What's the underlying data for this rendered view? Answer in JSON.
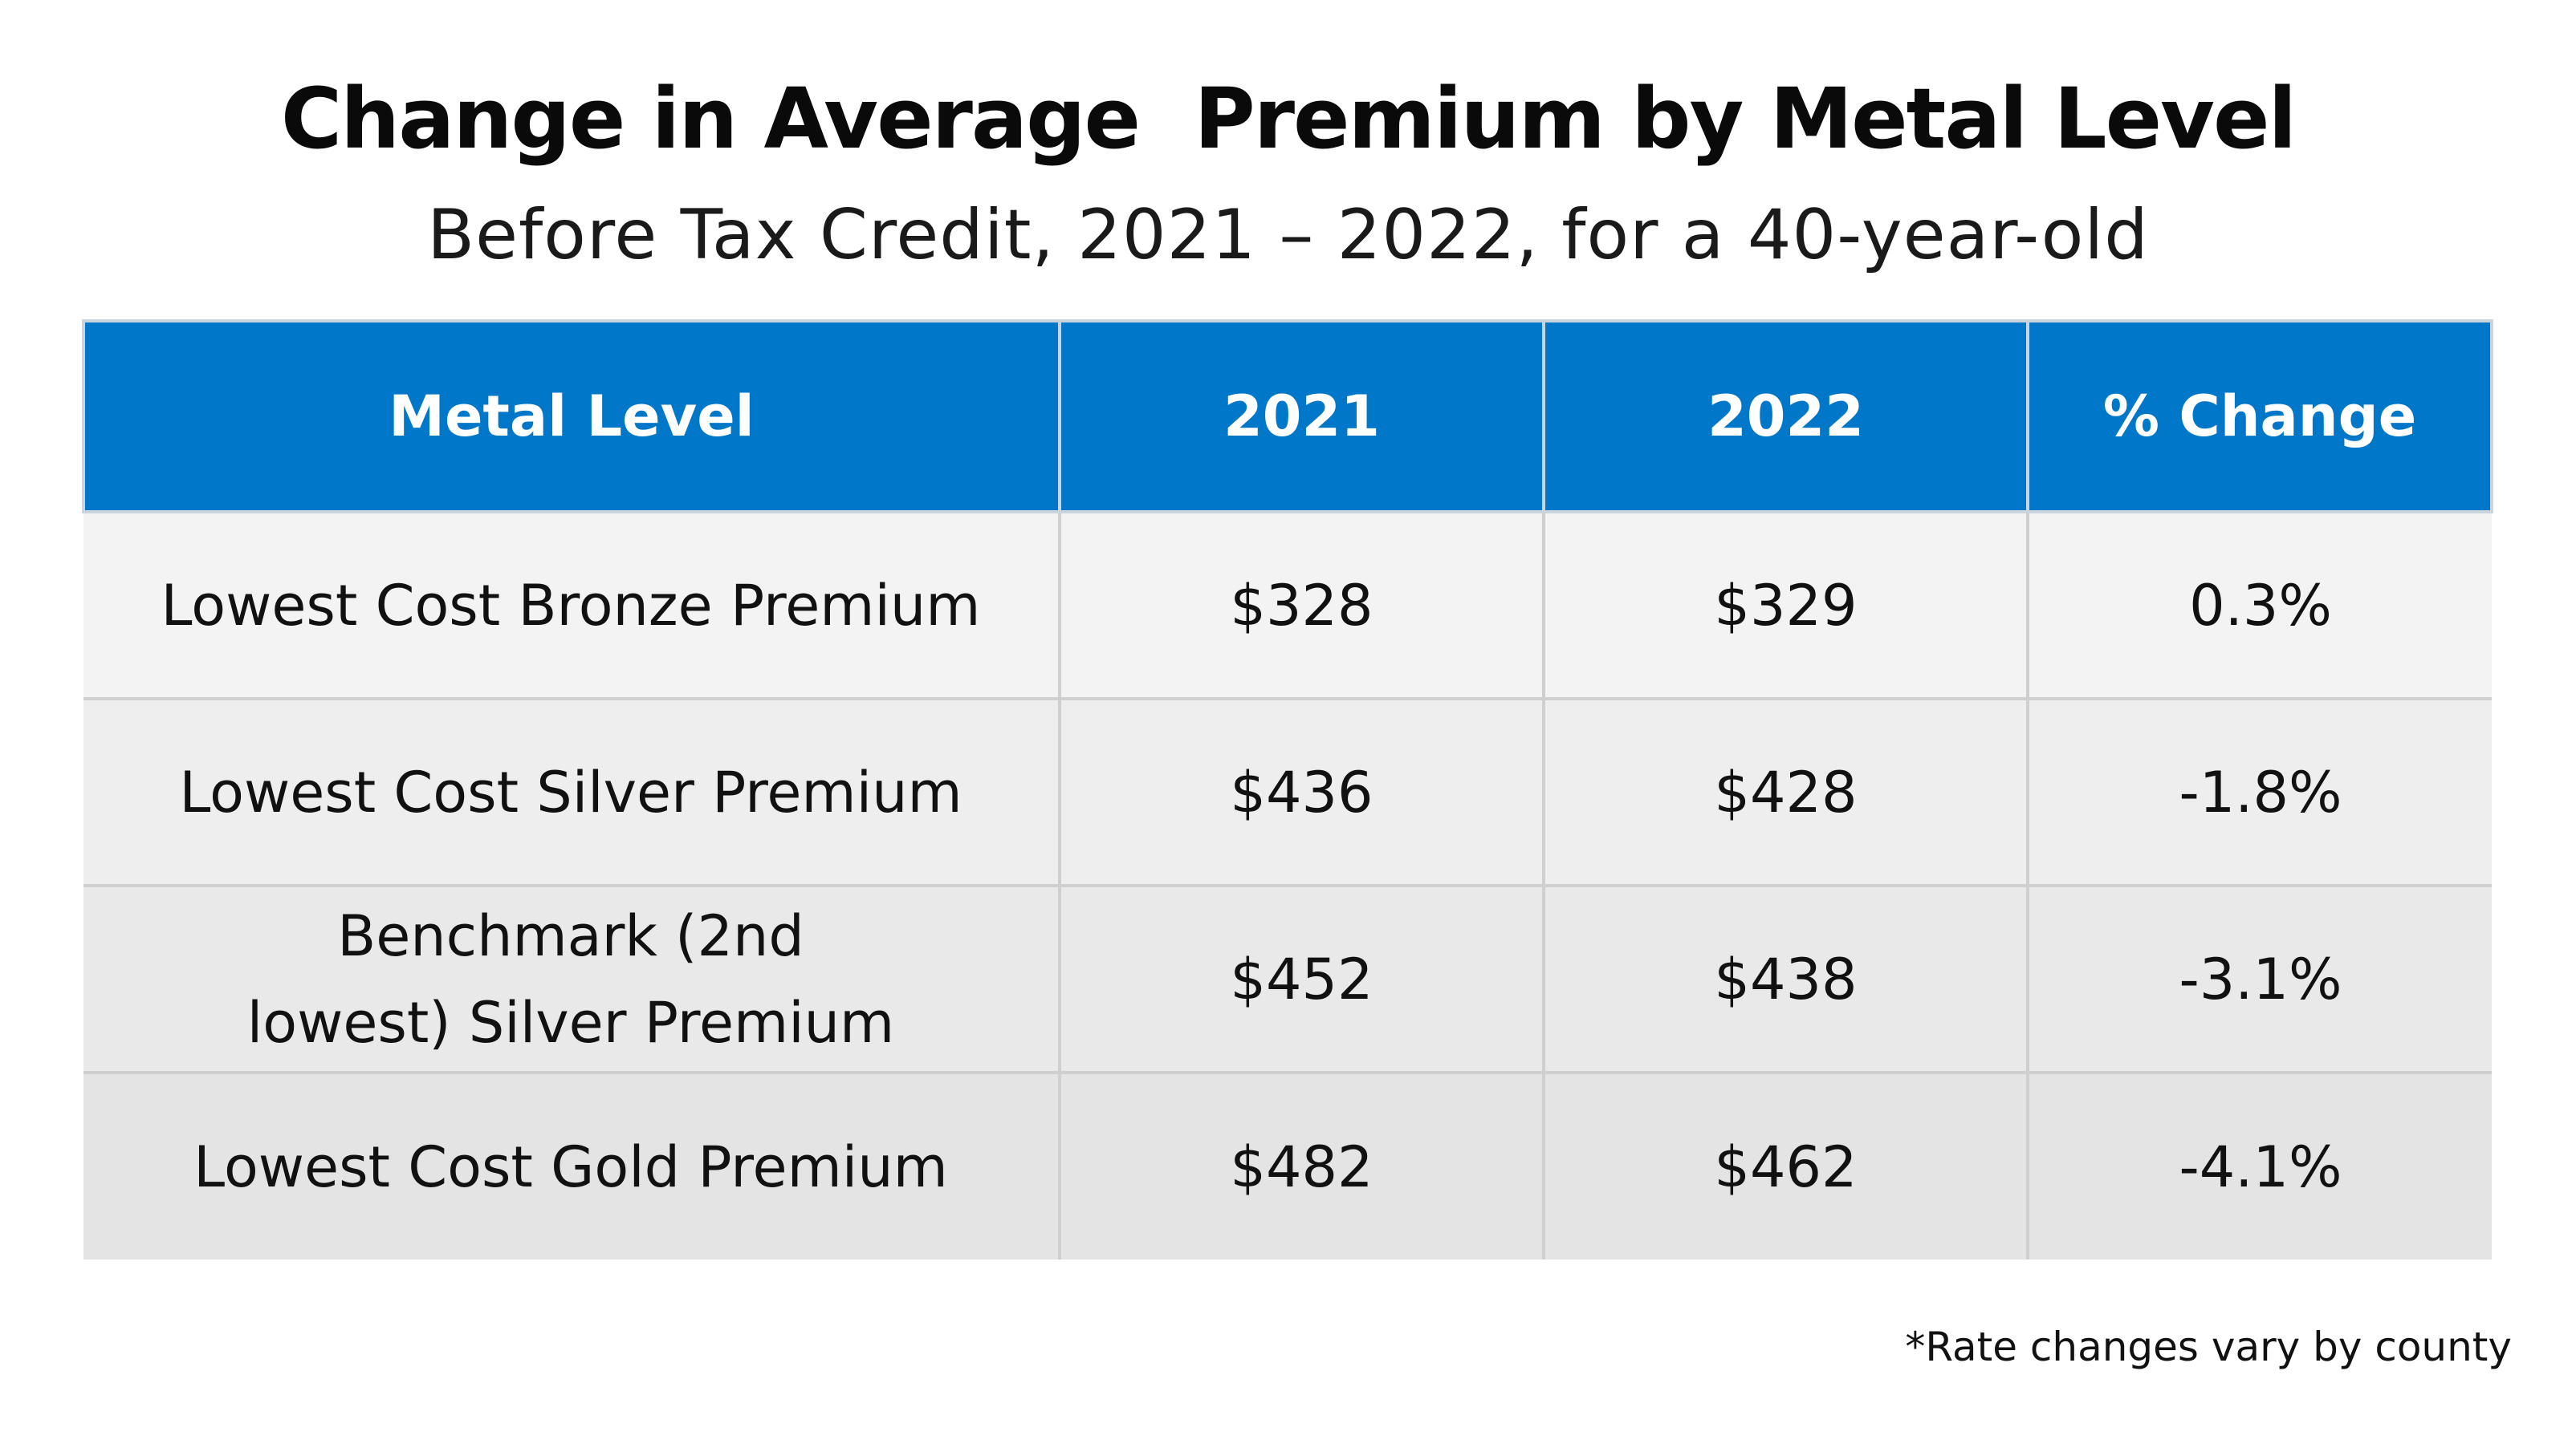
{
  "chart_data": {
    "type": "table",
    "title": "Change in Average  Premium by Metal Level",
    "subtitle": "Before Tax Credit, 2021 – 2022, for a 40-year-old",
    "columns": [
      "Metal Level",
      "2021",
      "2022",
      "% Change"
    ],
    "rows": [
      {
        "level": "Lowest Cost Bronze Premium",
        "y2021": "$328",
        "y2022": "$329",
        "change": "0.3%"
      },
      {
        "level": "Lowest Cost Silver Premium",
        "y2021": "$436",
        "y2022": "$428",
        "change": "-1.8%"
      },
      {
        "level": "Benchmark (2nd lowest) Silver Premium",
        "y2021": "$452",
        "y2022": "$438",
        "change": "-3.1%"
      },
      {
        "level": "Lowest Cost Gold Premium",
        "y2021": "$482",
        "y2022": "$462",
        "change": "-4.1%"
      }
    ],
    "footnote": "*Rate changes vary by county"
  },
  "colors": {
    "header_bg": "#0077c8",
    "header_text": "#ffffff",
    "row_bg": [
      "#f3f3f3",
      "#eeeeee",
      "#e9e9e9",
      "#e4e4e4"
    ]
  }
}
